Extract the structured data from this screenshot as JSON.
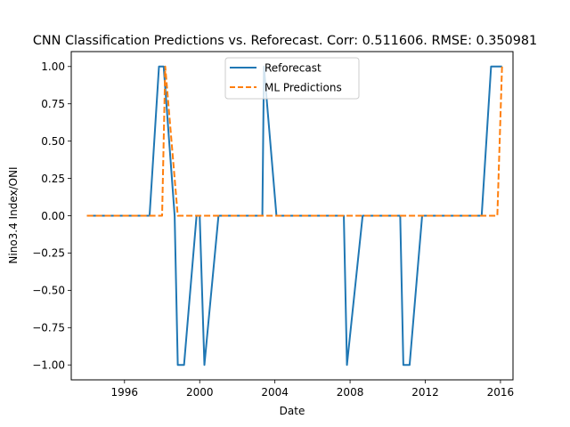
{
  "chart_data": {
    "type": "line",
    "title": "CNN Classification Predictions vs. Reforecast. Corr: 0.511606. RMSE: 0.350981",
    "xlabel": "Date",
    "ylabel": "Nino3.4 Index/ONI",
    "xlim": [
      "1993-03-01",
      "2016-09-01"
    ],
    "ylim": [
      -1.1,
      1.1
    ],
    "x_ticks": [
      "1996",
      "2000",
      "2004",
      "2008",
      "2012",
      "2016"
    ],
    "x_tick_dates": [
      "1996-01-01",
      "2000-01-01",
      "2004-01-01",
      "2008-01-01",
      "2012-01-01",
      "2016-01-01"
    ],
    "y_ticks": [
      "1.00",
      "0.75",
      "0.50",
      "0.25",
      "0.00",
      "−0.25",
      "−0.50",
      "−0.75",
      "−1.00"
    ],
    "y_tick_values": [
      1.0,
      0.75,
      0.5,
      0.25,
      0.0,
      -0.25,
      -0.5,
      -0.75,
      -1.0
    ],
    "grid": false,
    "legend_position": "top-center",
    "series": [
      {
        "name": "Reforecast",
        "color": "#1f77b4",
        "style": "solid",
        "points": [
          [
            "1994-01-01",
            0
          ],
          [
            "1997-05-01",
            0
          ],
          [
            "1997-11-01",
            1
          ],
          [
            "1998-02-01",
            1
          ],
          [
            "1998-09-01",
            0
          ],
          [
            "1998-11-01",
            -1
          ],
          [
            "1999-03-01",
            -1
          ],
          [
            "1999-11-01",
            0
          ],
          [
            "2000-01-01",
            0
          ],
          [
            "2000-04-01",
            -1
          ],
          [
            "2001-01-01",
            0
          ],
          [
            "2003-05-01",
            0
          ],
          [
            "2003-06-01",
            1
          ],
          [
            "2004-02-01",
            0
          ],
          [
            "2007-09-01",
            0
          ],
          [
            "2007-11-01",
            -1
          ],
          [
            "2008-09-01",
            0
          ],
          [
            "2010-09-01",
            0
          ],
          [
            "2010-11-01",
            -1
          ],
          [
            "2011-03-01",
            -1
          ],
          [
            "2011-11-01",
            0
          ],
          [
            "2015-01-01",
            0
          ],
          [
            "2015-07-01",
            1
          ],
          [
            "2016-02-01",
            1
          ]
        ]
      },
      {
        "name": "ML Predictions",
        "color": "#ff7f0e",
        "style": "dashed",
        "points": [
          [
            "1994-01-01",
            0
          ],
          [
            "1998-01-01",
            0
          ],
          [
            "1998-03-01",
            1
          ],
          [
            "1998-11-01",
            0
          ],
          [
            "2015-11-01",
            0
          ],
          [
            "2016-02-01",
            1
          ]
        ]
      }
    ]
  }
}
